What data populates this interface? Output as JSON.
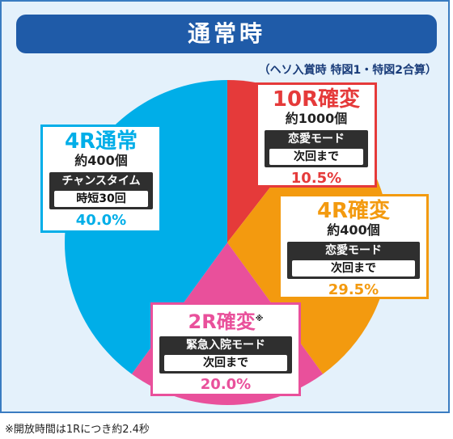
{
  "title": "通常時",
  "subtitle": "（ヘソ入賞時 特図1・特図2合算）",
  "footnote": "※開放時間は1Rにつき約2.4秒",
  "colors": {
    "blue": "#00aee8",
    "red": "#e53a3a",
    "orange": "#f39a0f",
    "pink": "#e9509b"
  },
  "boxes": {
    "r10": {
      "name": "10R確変",
      "count": "約1000個",
      "mode": "恋愛モード",
      "mode_sub": "次回まで",
      "pct": "10.5%"
    },
    "r4k": {
      "name": "4R確変",
      "count": "約400個",
      "mode": "恋愛モード",
      "mode_sub": "次回まで",
      "pct": "29.5%"
    },
    "r2": {
      "name": "2R確変",
      "mark": "※",
      "mode": "緊急入院モード",
      "mode_sub": "次回まで",
      "pct": "20.0%"
    },
    "r4n": {
      "name": "4R通常",
      "count": "約400個",
      "mode": "チャンスタイム",
      "mode_sub": "時短30回",
      "pct": "40.0%"
    }
  },
  "chart_data": {
    "type": "pie",
    "title": "通常時",
    "subtitle": "（ヘソ入賞時 特図1・特図2合算）",
    "categories": [
      "10R確変",
      "4R確変",
      "2R確変",
      "4R通常"
    ],
    "values": [
      10.5,
      29.5,
      20.0,
      40.0
    ],
    "colors": [
      "#e53a3a",
      "#f39a0f",
      "#e9509b",
      "#00aee8"
    ],
    "start": "top",
    "direction": "clockwise"
  }
}
